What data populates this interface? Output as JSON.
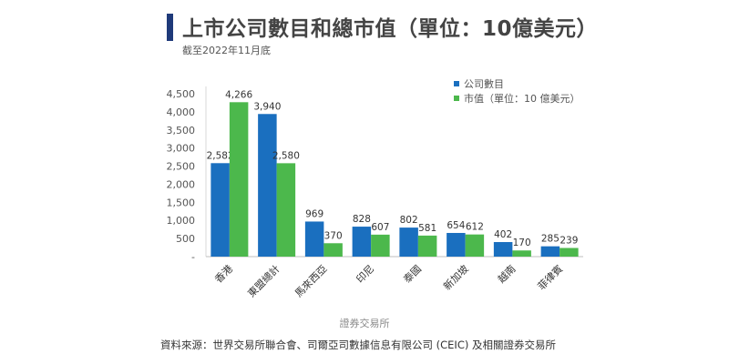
{
  "header": {
    "title": "上市公司數目和總市值（單位：10億美元）",
    "subtitle": "截至2022年11月底"
  },
  "footer": {
    "source": "資料來源：世界交易所聯合會、司爾亞司數據信息有限公司 (CEIC) 及相關證券交易所"
  },
  "chart_data": {
    "type": "bar",
    "title": "上市公司數目和總市值（單位：10億美元）",
    "subtitle": "截至2022年11月底",
    "xlabel": "證券交易所",
    "ylabel": "",
    "ylim": [
      0,
      4500
    ],
    "yticks": [
      0,
      500,
      1000,
      1500,
      2000,
      2500,
      3000,
      3500,
      4000,
      4500
    ],
    "ytick_labels": [
      "-",
      "500",
      "1,000",
      "1,500",
      "2,000",
      "2,500",
      "3,000",
      "3,500",
      "4,000",
      "4,500"
    ],
    "grid": false,
    "legend_position": "top-right",
    "categories": [
      "香港",
      "東盟總計",
      "馬來西亞",
      "印尼",
      "泰國",
      "新加坡",
      "越南",
      "菲律賓"
    ],
    "series": [
      {
        "name": "公司數目",
        "color": "#1a6fbf",
        "values": [
          2582,
          3940,
          969,
          828,
          802,
          654,
          402,
          285
        ],
        "labels": [
          "2,582",
          "3,940",
          "969",
          "828",
          "802",
          "654",
          "402",
          "285"
        ]
      },
      {
        "name": "市值（單位：10 億美元）",
        "color": "#4cb84c",
        "values": [
          4266,
          2580,
          370,
          607,
          581,
          612,
          170,
          239
        ],
        "labels": [
          "4,266",
          "2,580",
          "370",
          "607",
          "581",
          "612",
          "170",
          "239"
        ]
      }
    ]
  }
}
